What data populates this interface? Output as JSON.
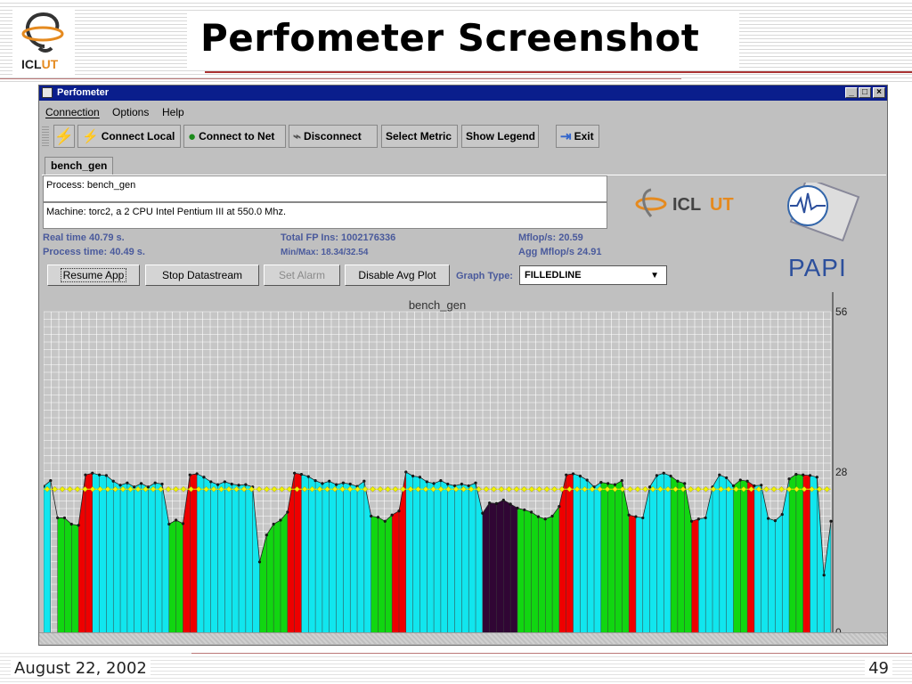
{
  "slide": {
    "title": "Perfometer Screenshot",
    "logo_text_a": "ICL",
    "logo_text_b": "UT",
    "date": "August 22, 2002",
    "page": "49"
  },
  "window": {
    "title": "Perfometer",
    "menu": [
      "Connection",
      "Options",
      "Help"
    ],
    "toolbar": {
      "connect_local": "Connect Local",
      "connect_net": "Connect to Net",
      "disconnect": "Disconnect",
      "select_metric": "Select Metric",
      "show_legend": "Show Legend",
      "exit": "Exit"
    },
    "tab": "bench_gen",
    "process": "Process: bench_gen",
    "machine": "Machine: torc2, a 2 CPU Intel Pentium III at 550.0 Mhz.",
    "stats": {
      "real_time": "Real time  40.79  s.",
      "process_time": "Process time:  40.49  s.",
      "total_fp": "Total FP Ins:  1002176336",
      "minmax": "Min/Max:  18.34/32.54",
      "mflops": "Mflop/s:  20.59",
      "agg_mflops": "Agg Mflop/s  24.91"
    },
    "buttons": {
      "resume": "Resume App",
      "stop": "Stop Datastream",
      "alarm": "Set Alarm",
      "avg": "Disable Avg Plot"
    },
    "graph_type_label": "Graph Type:",
    "graph_type_value": "FILLEDLINE",
    "papi_text": "PAPI",
    "icl_text_a": "ICL",
    "icl_text_b": "UT"
  },
  "chart_data": {
    "type": "area",
    "title": "bench_gen",
    "ylim": [
      0,
      56
    ],
    "yticks": [
      "56",
      "28",
      "0"
    ],
    "avg_line": 25,
    "grid": true,
    "colors": {
      "green": "#11d611",
      "red": "#ee0000",
      "cyan": "#11e6ee",
      "dark": "#300634",
      "avg": "#f3f300"
    },
    "values": [
      25.5,
      26.5,
      20,
      20,
      18.9,
      18.7,
      27.5,
      27.8,
      27.5,
      27.4,
      26.4,
      25.7,
      26.1,
      25.4,
      26.0,
      25.4,
      26.1,
      25.9,
      18.9,
      19.6,
      19.0,
      27.5,
      27.7,
      27.1,
      26.3,
      25.8,
      26.3,
      25.9,
      25.7,
      25.8,
      25.4,
      12.3,
      17.0,
      18.9,
      19.6,
      21.0,
      27.8,
      27.6,
      27.2,
      26.5,
      26.0,
      26.4,
      25.8,
      26.1,
      25.9,
      25.5,
      26.4,
      20.3,
      20.1,
      19.4,
      20.5,
      21.2,
      28.0,
      27.3,
      27.1,
      26.3,
      26.0,
      26.5,
      25.9,
      25.6,
      25.9,
      25.6,
      26.1,
      20.8,
      22.6,
      22.5,
      23.1,
      22.4,
      21.7,
      21.4,
      21.0,
      20.2,
      19.8,
      20.3,
      22.0,
      27.5,
      27.7,
      27.3,
      26.6,
      25.4,
      26.2,
      26.0,
      25.8,
      26.5,
      20.5,
      20.2,
      20.0,
      25.4,
      27.4,
      27.8,
      27.3,
      26.4,
      26.0,
      19.4,
      19.8,
      20.0,
      25.4,
      27.5,
      27.0,
      25.6,
      26.6,
      26.4,
      25.6,
      25.7,
      19.9,
      19.5,
      20.6,
      26.8,
      27.6,
      27.5,
      27.4,
      27.1,
      10.0,
      19.4
    ],
    "segments": [
      {
        "color": "cyan",
        "from": 0,
        "to": 1
      },
      {
        "color": "green",
        "from": 2,
        "to": 5
      },
      {
        "color": "red",
        "from": 5,
        "to": 7
      },
      {
        "color": "cyan",
        "from": 7,
        "to": 18
      },
      {
        "color": "green",
        "from": 18,
        "to": 20
      },
      {
        "color": "red",
        "from": 20,
        "to": 22
      },
      {
        "color": "cyan",
        "from": 22,
        "to": 31
      },
      {
        "color": "green",
        "from": 31,
        "to": 35
      },
      {
        "color": "red",
        "from": 35,
        "to": 37
      },
      {
        "color": "cyan",
        "from": 37,
        "to": 47
      },
      {
        "color": "green",
        "from": 47,
        "to": 50
      },
      {
        "color": "red",
        "from": 50,
        "to": 52
      },
      {
        "color": "cyan",
        "from": 52,
        "to": 63
      },
      {
        "color": "dark",
        "from": 63,
        "to": 68
      },
      {
        "color": "green",
        "from": 68,
        "to": 74
      },
      {
        "color": "red",
        "from": 74,
        "to": 76
      },
      {
        "color": "cyan",
        "from": 76,
        "to": 80
      },
      {
        "color": "green",
        "from": 80,
        "to": 84
      },
      {
        "color": "red",
        "from": 84,
        "to": 85
      },
      {
        "color": "cyan",
        "from": 85,
        "to": 90
      },
      {
        "color": "green",
        "from": 90,
        "to": 93
      },
      {
        "color": "red",
        "from": 93,
        "to": 94
      },
      {
        "color": "cyan",
        "from": 94,
        "to": 99
      },
      {
        "color": "green",
        "from": 99,
        "to": 101
      },
      {
        "color": "red",
        "from": 101,
        "to": 102
      },
      {
        "color": "cyan",
        "from": 102,
        "to": 107
      },
      {
        "color": "green",
        "from": 107,
        "to": 109
      },
      {
        "color": "red",
        "from": 109,
        "to": 110
      },
      {
        "color": "cyan",
        "from": 110,
        "to": 113
      },
      {
        "color": "green",
        "from": 113,
        "to": 115
      }
    ]
  }
}
